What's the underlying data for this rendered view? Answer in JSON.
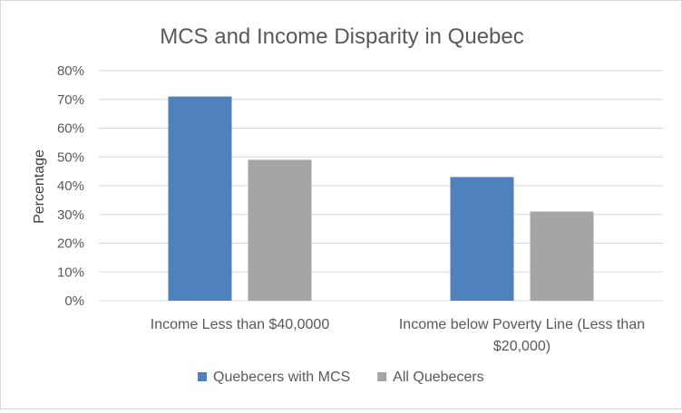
{
  "chart_data": {
    "type": "bar",
    "title": "MCS and Income Disparity in Quebec",
    "xlabel": "",
    "ylabel": "Percentage",
    "categories": [
      [
        "Income Less than $40,0000"
      ],
      [
        "Income below Poverty Line (Less than",
        "$20,000)"
      ]
    ],
    "series": [
      {
        "name": "Quebecers with MCS",
        "color": "#4f81bd",
        "values": [
          71,
          43
        ]
      },
      {
        "name": "All Quebecers",
        "color": "#a5a5a5",
        "values": [
          49,
          31
        ]
      }
    ],
    "ylim": [
      0,
      80
    ],
    "yticks": [
      0,
      10,
      20,
      30,
      40,
      50,
      60,
      70,
      80
    ],
    "ytick_suffix": "%",
    "grid": true,
    "legend_position": "bottom"
  }
}
